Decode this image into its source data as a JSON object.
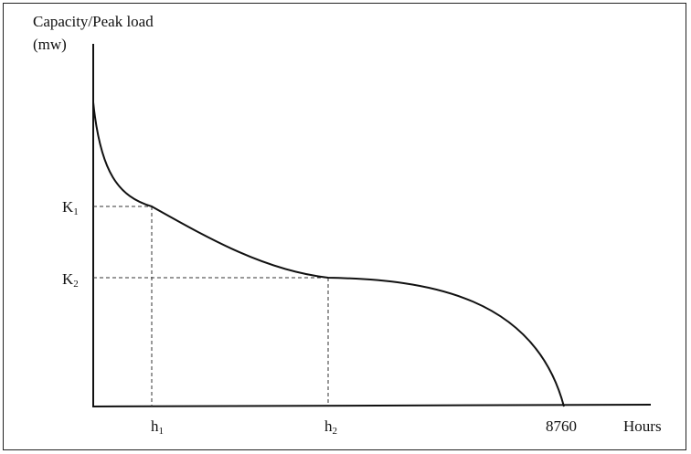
{
  "figure": {
    "y_axis_title_line1": "Capacity/Peak load",
    "y_axis_title_line2": "(mw)",
    "x_axis_title": "Hours",
    "y_ticks": [
      {
        "letter": "K",
        "sub": "1"
      },
      {
        "letter": "K",
        "sub": "2"
      }
    ],
    "x_ticks": [
      {
        "letter": "h",
        "sub": "1"
      },
      {
        "letter": "h",
        "sub": "2"
      },
      {
        "letter": "8760",
        "sub": ""
      }
    ]
  },
  "colors": {
    "line": "#111111",
    "dashed": "#333333",
    "frame": "#222222"
  }
}
